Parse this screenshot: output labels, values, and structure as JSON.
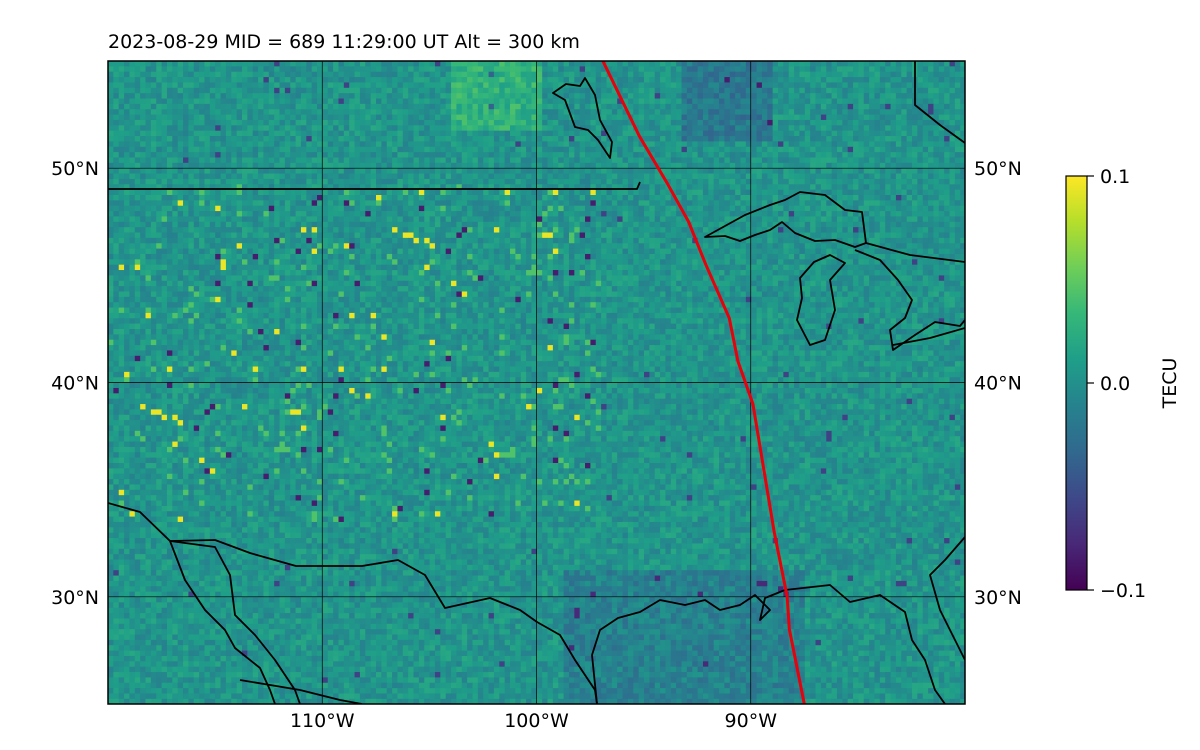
{
  "title": "2023-08-29  MID = 689    11:29:00  UT  Alt = 300 km",
  "map": {
    "lon_range": [
      -120,
      -80
    ],
    "lat_range": [
      25,
      55
    ],
    "gridlines": true,
    "x_ticks": [
      {
        "lon": -110,
        "label": "110°W"
      },
      {
        "lon": -100,
        "label": "100°W"
      },
      {
        "lon": -90,
        "label": "90°W"
      }
    ],
    "y_ticks": [
      {
        "lat": 50,
        "label": "50°N"
      },
      {
        "lat": 40,
        "label": "40°N"
      },
      {
        "lat": 30,
        "label": "30°N"
      }
    ],
    "terminator_color": "#e8000b",
    "terminator": [
      [
        -96.9,
        55
      ],
      [
        -95.2,
        51.5
      ],
      [
        -93.9,
        49.3
      ],
      [
        -92.9,
        47.5
      ],
      [
        -92.1,
        45.5
      ],
      [
        -91.0,
        43.0
      ],
      [
        -90.6,
        41.0
      ],
      [
        -89.9,
        39.0
      ],
      [
        -89.4,
        36.0
      ],
      [
        -88.9,
        33.0
      ],
      [
        -88.3,
        30.0
      ],
      [
        -88.2,
        28.5
      ],
      [
        -87.8,
        26.5
      ],
      [
        -87.5,
        25.0
      ]
    ],
    "coastline_color": "#000000"
  },
  "colorbar": {
    "label": "TECU",
    "range": [
      -0.1,
      0.1
    ],
    "ticks": [
      {
        "value": 0.1,
        "label": "0.1"
      },
      {
        "value": 0.0,
        "label": "0.0"
      },
      {
        "value": -0.1,
        "label": "−0.1"
      }
    ],
    "colormap": "viridis",
    "stops": [
      "#440154",
      "#482878",
      "#3e4989",
      "#31688e",
      "#26828e",
      "#1f9e89",
      "#35b779",
      "#6ece58",
      "#b5de2b",
      "#fde725"
    ]
  }
}
